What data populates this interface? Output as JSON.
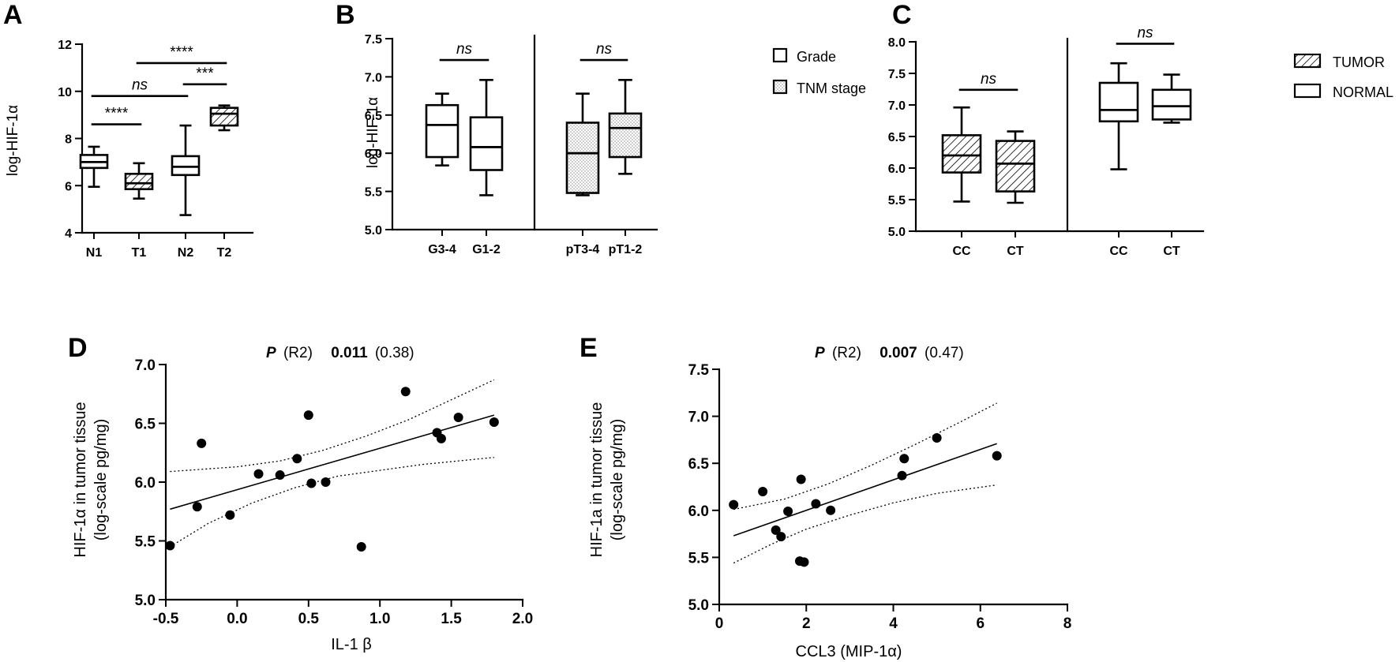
{
  "chart_data": [
    {
      "panel": "A",
      "type": "box",
      "ylabel": "log-HIF-1α",
      "ylim": [
        4,
        12
      ],
      "yticks": [
        4,
        6,
        8,
        10,
        12
      ],
      "categories": [
        "N1",
        "T1",
        "N2",
        "T2"
      ],
      "boxes": [
        {
          "category": "N1",
          "min": 5.95,
          "q1": 6.75,
          "median": 7.0,
          "q3": 7.3,
          "max": 7.65,
          "pattern": "none"
        },
        {
          "category": "T1",
          "min": 5.45,
          "q1": 5.85,
          "median": 6.1,
          "q3": 6.5,
          "max": 6.95,
          "pattern": "hatch"
        },
        {
          "category": "N2",
          "min": 4.75,
          "q1": 6.45,
          "median": 6.8,
          "q3": 7.25,
          "max": 8.55,
          "pattern": "none"
        },
        {
          "category": "T2",
          "min": 8.35,
          "q1": 8.55,
          "median": 9.05,
          "q3": 9.3,
          "max": 9.4,
          "pattern": "hatch"
        }
      ],
      "comparisons": [
        {
          "from": "N1",
          "to": "T1",
          "label": "****",
          "y": 8.6
        },
        {
          "from": "N2",
          "to": "T2",
          "label": "***",
          "y": 10.3
        },
        {
          "from": "N1",
          "to": "N2",
          "label": "ns",
          "y": 9.8
        },
        {
          "from": "T1",
          "to": "T2",
          "label": "****",
          "y": 11.2
        }
      ]
    },
    {
      "panel": "B",
      "type": "box",
      "ylabel": "log-HIF-1α",
      "ylim": [
        5.0,
        7.5
      ],
      "yticks": [
        "5.0",
        "5.5",
        "6.0",
        "6.5",
        "7.0",
        "7.5"
      ],
      "categories": [
        "G3-4",
        "G1-2",
        "pT3-4",
        "pT1-2"
      ],
      "boxes": [
        {
          "category": "G3-4",
          "min": 5.84,
          "q1": 5.95,
          "median": 6.37,
          "q3": 6.63,
          "max": 6.78,
          "pattern": "none"
        },
        {
          "category": "G1-2",
          "min": 5.45,
          "q1": 5.78,
          "median": 6.08,
          "q3": 6.47,
          "max": 6.96,
          "pattern": "none"
        },
        {
          "category": "pT3-4",
          "min": 5.45,
          "q1": 5.48,
          "median": 6.0,
          "q3": 6.4,
          "max": 6.78,
          "pattern": "dots"
        },
        {
          "category": "pT1-2",
          "min": 5.73,
          "q1": 5.95,
          "median": 6.33,
          "q3": 6.52,
          "max": 6.96,
          "pattern": "dots"
        }
      ],
      "comparisons": [
        {
          "from": "G3-4",
          "to": "G1-2",
          "label": "ns",
          "y": 7.22
        },
        {
          "from": "pT3-4",
          "to": "pT1-2",
          "label": "ns",
          "y": 7.22
        }
      ],
      "legend": [
        "Grade",
        "TNM stage"
      ]
    },
    {
      "panel": "C",
      "type": "box",
      "ylim": [
        5.0,
        8.0
      ],
      "yticks": [
        "5.0",
        "5.5",
        "6.0",
        "6.5",
        "7.0",
        "7.5",
        "8.0"
      ],
      "categories": [
        "CC",
        "CT",
        "CC",
        "CT"
      ],
      "boxes": [
        {
          "category": "CC",
          "min": 5.47,
          "q1": 5.93,
          "median": 6.2,
          "q3": 6.52,
          "max": 6.96,
          "pattern": "hatch"
        },
        {
          "category": "CT",
          "min": 5.45,
          "q1": 5.63,
          "median": 6.07,
          "q3": 6.43,
          "max": 6.58,
          "pattern": "hatch"
        },
        {
          "category": "CC",
          "min": 5.98,
          "q1": 6.74,
          "median": 6.92,
          "q3": 7.35,
          "max": 7.66,
          "pattern": "none"
        },
        {
          "category": "CT",
          "min": 6.72,
          "q1": 6.77,
          "median": 6.98,
          "q3": 7.24,
          "max": 7.48,
          "pattern": "none"
        }
      ],
      "comparisons": [
        {
          "from": 0,
          "to": 1,
          "label": "ns",
          "y": 7.24
        },
        {
          "from": 2,
          "to": 3,
          "label": "ns",
          "y": 7.97
        }
      ],
      "legend": [
        "TUMOR",
        "NORMAL"
      ]
    },
    {
      "panel": "D",
      "type": "scatter",
      "xlabel": "IL-1 β",
      "ylabel": [
        "HIF-1α  in tumor tissue",
        "(log-scale pg/mg)"
      ],
      "xlim": [
        -0.5,
        2.0
      ],
      "ylim": [
        5.0,
        7.0
      ],
      "xticks": [
        "-0.5",
        "0.0",
        "0.5",
        "1.0",
        "1.5",
        "2.0"
      ],
      "yticks": [
        "5.0",
        "5.5",
        "6.0",
        "6.5",
        "7.0"
      ],
      "stat": {
        "p_label": "P",
        "r_label": "(R2)",
        "p_value": "0.011",
        "r2": "(0.38)"
      },
      "points": [
        [
          -0.47,
          5.46
        ],
        [
          -0.28,
          5.79
        ],
        [
          -0.25,
          6.33
        ],
        [
          -0.05,
          5.72
        ],
        [
          0.15,
          6.07
        ],
        [
          0.3,
          6.06
        ],
        [
          0.42,
          6.2
        ],
        [
          0.5,
          6.57
        ],
        [
          0.52,
          5.99
        ],
        [
          0.62,
          6.0
        ],
        [
          0.87,
          5.45
        ],
        [
          1.18,
          6.77
        ],
        [
          1.4,
          6.42
        ],
        [
          1.43,
          6.37
        ],
        [
          1.55,
          6.55
        ],
        [
          1.8,
          6.51
        ]
      ],
      "fit": [
        [
          -0.47,
          5.77
        ],
        [
          1.8,
          6.57
        ]
      ],
      "ci_upper": [
        [
          -0.47,
          6.09
        ],
        [
          0.0,
          6.13
        ],
        [
          0.3,
          6.18
        ],
        [
          0.6,
          6.27
        ],
        [
          0.9,
          6.39
        ],
        [
          1.2,
          6.53
        ],
        [
          1.5,
          6.7
        ],
        [
          1.8,
          6.87
        ]
      ],
      "ci_lower": [
        [
          -0.47,
          5.45
        ],
        [
          -0.2,
          5.65
        ],
        [
          0.1,
          5.82
        ],
        [
          0.4,
          5.95
        ],
        [
          0.7,
          6.05
        ],
        [
          1.0,
          6.1
        ],
        [
          1.3,
          6.15
        ],
        [
          1.8,
          6.21
        ]
      ]
    },
    {
      "panel": "E",
      "type": "scatter",
      "xlabel": "CCL3  (MIP-1α)",
      "ylabel": [
        "HIF-1a in tumor tissue",
        "(log-scale pg/mg)"
      ],
      "xlim": [
        0,
        8
      ],
      "ylim": [
        5.0,
        7.5
      ],
      "xticks": [
        "0",
        "2",
        "4",
        "6",
        "8"
      ],
      "yticks": [
        "5.0",
        "5.5",
        "6.0",
        "6.5",
        "7.0",
        "7.5"
      ],
      "stat": {
        "p_label": "P",
        "r_label": "(R2)",
        "p_value": "0.007",
        "r2": "(0.47)"
      },
      "points": [
        [
          0.33,
          6.06
        ],
        [
          1.0,
          6.2
        ],
        [
          1.3,
          5.79
        ],
        [
          1.42,
          5.72
        ],
        [
          1.58,
          5.99
        ],
        [
          1.85,
          5.46
        ],
        [
          1.88,
          6.33
        ],
        [
          1.95,
          5.45
        ],
        [
          2.22,
          6.07
        ],
        [
          2.56,
          6.0
        ],
        [
          4.2,
          6.37
        ],
        [
          4.25,
          6.55
        ],
        [
          5.0,
          6.77
        ],
        [
          6.38,
          6.58
        ]
      ],
      "fit": [
        [
          0.33,
          5.73
        ],
        [
          6.38,
          6.71
        ]
      ],
      "ci_upper": [
        [
          0.33,
          6.01
        ],
        [
          1.5,
          6.12
        ],
        [
          2.5,
          6.28
        ],
        [
          3.5,
          6.48
        ],
        [
          4.5,
          6.7
        ],
        [
          5.5,
          6.93
        ],
        [
          6.38,
          7.14
        ]
      ],
      "ci_lower": [
        [
          0.33,
          5.44
        ],
        [
          1.2,
          5.64
        ],
        [
          2.0,
          5.8
        ],
        [
          3.0,
          5.95
        ],
        [
          4.0,
          6.08
        ],
        [
          5.0,
          6.18
        ],
        [
          6.38,
          6.27
        ]
      ]
    }
  ]
}
